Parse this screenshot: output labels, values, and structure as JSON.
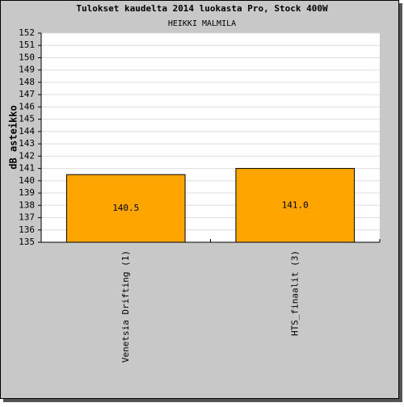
{
  "chart_data": {
    "type": "bar",
    "title": "Tulokset kaudelta 2014 luokasta Pro, Stock 400W",
    "subtitle": "HEIKKI MALMILA",
    "y_label": "dB asteikko",
    "categories": [
      "Venetsia Drifting (1)",
      "HTS_finaalit (3)"
    ],
    "values": [
      140.5,
      141
    ],
    "value_labels": [
      "140.5",
      "141.0"
    ],
    "color": "#ffa500",
    "ylim": [
      135,
      152
    ],
    "yticks": [
      135,
      136,
      137,
      138,
      139,
      140,
      141,
      142,
      143,
      144,
      145,
      146,
      147,
      148,
      149,
      150,
      151,
      152
    ],
    "grid": true
  }
}
